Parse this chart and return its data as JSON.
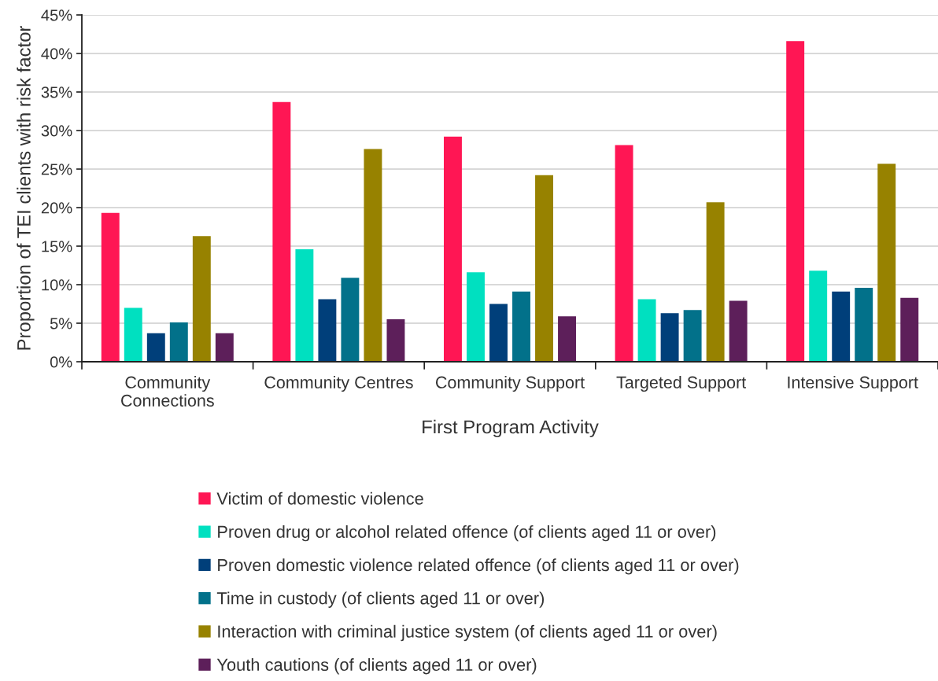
{
  "chart_data": {
    "type": "bar",
    "xlabel": "First Program Activity",
    "ylabel": "Proportion of TEI clients with risk factor",
    "categories": [
      "Community Connections",
      "Community Centres",
      "Community Support",
      "Targeted Support",
      "Intensive Support"
    ],
    "series": [
      {
        "name": "Victim of domestic violence",
        "color": "#ff1654",
        "values": [
          19.3,
          33.7,
          29.2,
          28.1,
          41.6
        ]
      },
      {
        "name": "Proven drug or alcohol related offence (of clients aged 11 or over)",
        "color": "#00e0c0",
        "values": [
          7.0,
          14.6,
          11.6,
          8.1,
          11.8
        ]
      },
      {
        "name": "Proven domestic violence related offence (of clients aged 11 or over)",
        "color": "#003f7a",
        "values": [
          3.7,
          8.1,
          7.5,
          6.3,
          9.1
        ]
      },
      {
        "name": "Time in custody (of clients aged 11 or over)",
        "color": "#02718a",
        "values": [
          5.1,
          10.9,
          9.1,
          6.7,
          9.6
        ]
      },
      {
        "name": "Interaction with criminal justice system (of clients aged 11 or over)",
        "color": "#978200",
        "values": [
          16.3,
          27.6,
          24.2,
          20.7,
          25.7
        ]
      },
      {
        "name": "Youth cautions (of clients aged 11 or over)",
        "color": "#5d1f5a",
        "values": [
          3.7,
          5.5,
          5.9,
          7.9,
          8.3
        ]
      }
    ],
    "ylim": [
      0,
      45
    ],
    "yticks": [
      {
        "value": 0,
        "label": "0%"
      },
      {
        "value": 5,
        "label": "5%"
      },
      {
        "value": 10,
        "label": "10%"
      },
      {
        "value": 15,
        "label": "15%"
      },
      {
        "value": 20,
        "label": "20%"
      },
      {
        "value": 25,
        "label": "25%"
      },
      {
        "value": 30,
        "label": "30%"
      },
      {
        "value": 35,
        "label": "35%"
      },
      {
        "value": 40,
        "label": "40%"
      },
      {
        "value": 45,
        "label": "45%"
      }
    ],
    "grid": "y",
    "legend": "bottom"
  }
}
